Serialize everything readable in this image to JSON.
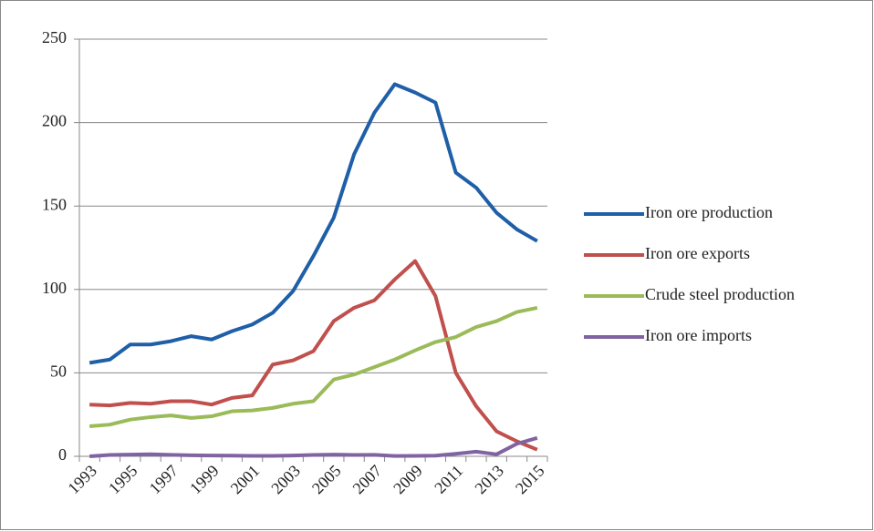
{
  "chart_data": {
    "type": "line",
    "categories": [
      "1993",
      null,
      "1995",
      null,
      "1997",
      null,
      "1999",
      null,
      "2001",
      null,
      "2003",
      null,
      "2005",
      null,
      "2007",
      null,
      "2009",
      null,
      "2011",
      null,
      "2013",
      null,
      "2015"
    ],
    "series": [
      {
        "name": "Iron ore production",
        "color": "#1f5fa8",
        "values": [
          56,
          58,
          67,
          67,
          69,
          72,
          70,
          75,
          79,
          86,
          99,
          120,
          143,
          181,
          206,
          223,
          218,
          212,
          170,
          161,
          146,
          136,
          129
        ]
      },
      {
        "name": "Iron ore exports",
        "color": "#c0504d",
        "values": [
          31,
          30.5,
          32,
          31.5,
          33,
          33,
          31,
          35,
          36.5,
          55,
          57.5,
          63,
          81,
          89,
          93.5,
          106,
          117,
          96,
          50,
          30,
          15,
          9,
          4
        ]
      },
      {
        "name": "Crude steel production",
        "color": "#9bbb59",
        "values": [
          18,
          19,
          22,
          23.5,
          24.5,
          23,
          24,
          27,
          27.5,
          29,
          31.5,
          33,
          46,
          49,
          53.5,
          58,
          63.5,
          68.5,
          71.5,
          77.5,
          81,
          86.5,
          89
        ]
      },
      {
        "name": "Iron ore imports",
        "color": "#8064a2",
        "values": [
          0,
          0.8,
          1,
          1.2,
          0.9,
          0.6,
          0.5,
          0.4,
          0.3,
          0.3,
          0.5,
          0.8,
          1,
          0.8,
          0.9,
          0.2,
          0.3,
          0.4,
          1.5,
          2.8,
          1.2,
          7.5,
          11
        ]
      }
    ],
    "ylim": [
      0,
      250
    ],
    "yticks": [
      0,
      50,
      100,
      150,
      200,
      250
    ],
    "grid": true,
    "legend": "right"
  }
}
